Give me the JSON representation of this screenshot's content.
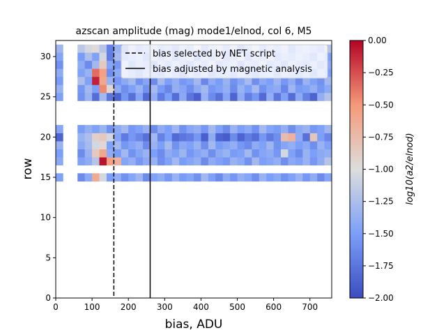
{
  "chart_data": {
    "type": "heatmap",
    "title": "azscan amplitude (mag) mode1/elnod, col 6, M5",
    "xlabel": "bias, ADU",
    "ylabel": "row",
    "xlim": [
      0,
      760
    ],
    "ylim": [
      0,
      32
    ],
    "xticks": [
      0,
      100,
      200,
      300,
      400,
      500,
      600,
      700
    ],
    "yticks": [
      0,
      5,
      10,
      15,
      20,
      25,
      30
    ],
    "colorbar": {
      "label": "log10(a2/elnod)",
      "min": -2.0,
      "max": 0.0,
      "ticks": [
        "0.00",
        "−0.25",
        "−0.50",
        "−0.75",
        "−1.00",
        "−1.25",
        "−1.50",
        "−1.75",
        "−2.00"
      ],
      "colormap": "coolwarm"
    },
    "grid": {
      "x_start": 0,
      "cell_width": 20,
      "n_cols": 38,
      "missing_cols": [
        1,
        2
      ],
      "row_values": {
        "31": [
          -1.32,
          -1.41,
          -1.48,
          -1.18,
          -1.05,
          -0.98,
          -1.2,
          -1.68,
          -1.35,
          -1.72,
          -1.3,
          -1.55,
          -1.4,
          -1.25,
          -1.5,
          -1.38,
          -1.62,
          -1.28,
          -1.45,
          -1.1,
          -1.58,
          -1.35,
          -1.22,
          -1.48,
          -1.3,
          -1.66,
          -1.4,
          -1.18,
          -1.52,
          -1.33,
          -1.46,
          -1.25,
          -1.6,
          -1.38,
          -1.28,
          -1.42,
          -1.55,
          -1.2
        ],
        "30": [
          -1.45,
          -1.6,
          -1.38,
          -1.52,
          -1.25,
          -1.48,
          -1.05,
          -1.7,
          -1.28,
          -1.55,
          -1.42,
          -1.35,
          -1.62,
          -1.2,
          -1.48,
          -1.3,
          -1.58,
          -1.4,
          -1.22,
          -1.65,
          -1.35,
          -1.48,
          -1.28,
          -1.55,
          -1.4,
          -1.18,
          -1.62,
          -1.32,
          -1.45,
          -1.25,
          -1.58,
          -1.38,
          -1.5,
          -1.28,
          -1.42,
          -1.6,
          -1.3,
          -1.48
        ],
        "29": [
          -1.58,
          -1.35,
          -1.5,
          -1.4,
          -1.62,
          -1.3,
          -0.85,
          -1.45,
          -1.55,
          -1.25,
          -1.6,
          -1.38,
          -1.48,
          -1.7,
          -1.32,
          -1.52,
          -1.28,
          -1.45,
          -1.62,
          -1.35,
          -1.5,
          -1.22,
          -1.58,
          -1.4,
          -1.3,
          -1.65,
          -1.38,
          -1.48,
          -1.25,
          -1.55,
          -1.42,
          -1.6,
          -1.3,
          -1.45,
          -1.52,
          -1.35,
          -1.58,
          -1.4
        ],
        "28": [
          -1.4,
          -1.55,
          -1.3,
          -1.48,
          -1.35,
          -0.35,
          -0.55,
          -1.6,
          -1.42,
          -1.28,
          -1.5,
          -1.65,
          -1.38,
          -1.45,
          -1.58,
          -1.3,
          -1.48,
          -1.72,
          -1.35,
          -1.52,
          -1.28,
          -1.6,
          -1.45,
          -1.38,
          -1.55,
          -1.3,
          -1.48,
          -1.62,
          -1.4,
          -1.35,
          -1.58,
          -1.28,
          -1.45,
          -1.52,
          -1.38,
          -1.6,
          -1.32,
          -1.5
        ],
        "27": [
          -1.52,
          -1.38,
          -1.6,
          -1.25,
          -1.48,
          -0.1,
          -0.6,
          -1.35,
          -1.55,
          -1.42,
          -1.3,
          -1.58,
          -1.45,
          -1.62,
          -1.28,
          -1.5,
          -1.38,
          -1.55,
          -1.48,
          -1.3,
          -1.65,
          -1.4,
          -1.52,
          -1.35,
          -1.58,
          -1.45,
          -1.28,
          -1.6,
          -1.42,
          -1.5,
          -1.32,
          -1.55,
          -1.4,
          -1.62,
          -1.35,
          -1.48,
          -1.58,
          -1.3
        ],
        "26": [
          -1.35,
          -1.62,
          -1.45,
          -1.55,
          -1.3,
          -1.5,
          -0.45,
          -0.95,
          -1.4,
          -1.6,
          -1.48,
          -1.35,
          -1.58,
          -1.28,
          -1.52,
          -1.65,
          -1.38,
          -1.45,
          -1.6,
          -1.42,
          -1.3,
          -1.55,
          -1.48,
          -1.38,
          -1.62,
          -1.35,
          -1.5,
          -1.28,
          -1.58,
          -1.45,
          -1.4,
          -1.65,
          -1.32,
          -1.52,
          -1.48,
          -1.38,
          -1.55,
          -1.42
        ],
        "25": [
          -1.48,
          -1.85,
          -1.4,
          -1.58,
          -1.35,
          -1.8,
          -1.3,
          -1.75,
          -1.85,
          -1.55,
          -1.78,
          -1.45,
          -1.82,
          -1.38,
          -1.72,
          -1.5,
          -1.8,
          -1.42,
          -1.75,
          -1.88,
          -1.35,
          -1.62,
          -1.78,
          -1.45,
          -1.85,
          -1.4,
          -1.7,
          -1.55,
          -1.82,
          -1.38,
          -1.75,
          -1.48,
          -1.8,
          -1.42,
          -1.68,
          -1.85,
          -1.38,
          -1.22
        ],
        "21": [
          -1.45,
          -1.62,
          -1.3,
          -1.52,
          -1.38,
          -1.48,
          -1.35,
          -1.58,
          -1.42,
          -1.3,
          -1.55,
          -1.48,
          -1.36,
          -1.62,
          -1.4,
          -1.5,
          -1.32,
          -1.58,
          -1.44,
          -1.38,
          -1.55,
          -1.3,
          -1.48,
          -1.62,
          -1.35,
          -1.5,
          -1.42,
          -1.58,
          -1.3,
          -1.46,
          -1.52,
          -1.38,
          -1.6,
          -1.42,
          -1.35,
          -1.55,
          -1.48,
          -1.32
        ],
        "20": [
          -1.85,
          -1.4,
          -1.5,
          -1.35,
          -1.25,
          -0.9,
          -0.85,
          -1.05,
          -1.45,
          -1.72,
          -1.55,
          -1.65,
          -1.78,
          -1.3,
          -1.68,
          -1.5,
          -1.82,
          -1.75,
          -1.7,
          -1.55,
          -1.88,
          -1.4,
          -1.85,
          -1.9,
          -1.62,
          -1.85,
          -1.7,
          -1.8,
          -1.55,
          -1.72,
          -1.6,
          -0.75,
          -0.68,
          -1.4,
          -1.78,
          -0.82,
          -1.5,
          -1.65
        ],
        "19": [
          -1.35,
          -1.52,
          -1.6,
          -1.42,
          -1.28,
          -1.05,
          -0.95,
          -1.48,
          -1.3,
          -1.55,
          -1.45,
          -1.38,
          -1.62,
          -1.35,
          -1.5,
          -1.28,
          -1.58,
          -1.42,
          -1.48,
          -1.35,
          -1.6,
          -1.3,
          -1.52,
          -1.45,
          -1.38,
          -1.55,
          -1.62,
          -1.4,
          -1.48,
          -1.32,
          -1.58,
          -1.45,
          -1.38,
          -1.5,
          -1.42,
          -1.6,
          -1.35,
          -1.48
        ],
        "18": [
          -1.5,
          -1.38,
          -1.45,
          -1.62,
          -1.35,
          -0.85,
          -0.6,
          -1.4,
          -1.52,
          -1.3,
          -1.58,
          -1.45,
          -1.35,
          -1.5,
          -1.62,
          -1.4,
          -1.48,
          -1.32,
          -1.55,
          -1.45,
          -1.38,
          -1.6,
          -1.42,
          -1.35,
          -1.52,
          -1.48,
          -1.3,
          -1.58,
          -1.45,
          -1.4,
          -1.55,
          -1.05,
          -1.48,
          -1.62,
          -1.35,
          -1.5,
          -1.42,
          -1.38
        ],
        "17": [
          -1.42,
          -1.58,
          -1.35,
          -1.48,
          -1.4,
          -1.2,
          -0.05,
          -0.55,
          -0.68,
          -1.45,
          -1.38,
          -1.55,
          -1.42,
          -1.35,
          -1.6,
          -1.48,
          -1.3,
          -1.52,
          -1.45,
          -1.38,
          -1.62,
          -1.4,
          -1.48,
          -1.55,
          -1.35,
          -1.42,
          -1.58,
          -1.3,
          -1.5,
          -1.45,
          -1.38,
          -1.6,
          -1.42,
          -1.48,
          -1.35,
          -1.55,
          -1.4,
          -1.2
        ],
        "15": [
          -1.48,
          -1.35,
          -1.55,
          -1.62,
          -1.42,
          -0.62,
          -1.05,
          -1.5,
          -1.38,
          -1.58,
          -1.45,
          -1.32,
          -1.62,
          -1.48,
          -1.4,
          -1.55,
          -1.35,
          -1.52,
          -1.45,
          -1.58,
          -1.3,
          -1.48,
          -1.62,
          -1.4,
          -1.55,
          -1.38,
          -1.45,
          -1.6,
          -1.35,
          -1.5,
          -1.42,
          -1.58,
          -1.48,
          -1.35,
          -1.55,
          -1.4,
          -1.62,
          -1.45
        ]
      }
    },
    "vlines": [
      {
        "x": 160,
        "style": "dashed",
        "label": "bias selected by NET script"
      },
      {
        "x": 260,
        "style": "solid",
        "label": "bias adjusted by magnetic analysis"
      }
    ],
    "legend_position": "top-right"
  }
}
